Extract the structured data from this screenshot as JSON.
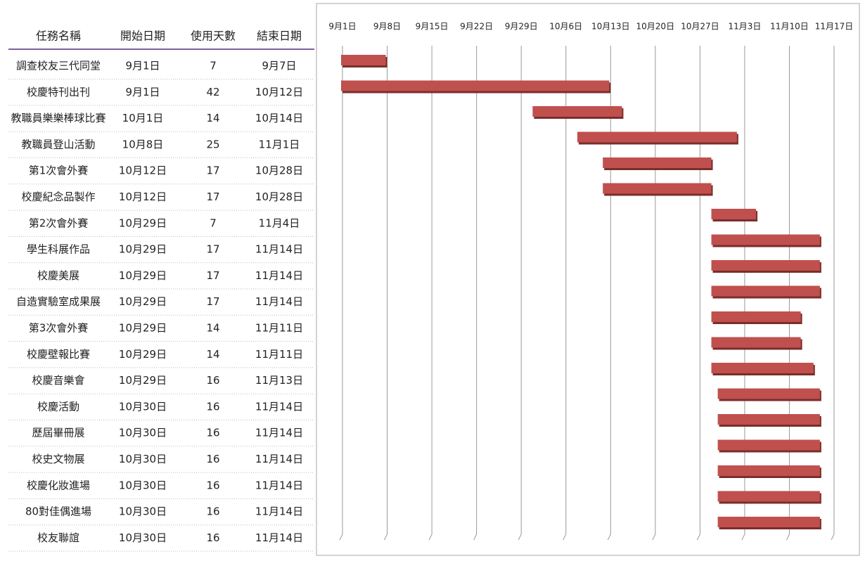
{
  "table": {
    "header": [
      "任務名稱",
      "開始日期",
      "使用天數",
      "結束日期"
    ],
    "rows": [
      [
        "調查校友三代同堂",
        "9月1日",
        7,
        "9月7日"
      ],
      [
        "校慶特刊出刊",
        "9月1日",
        42,
        "10月12日"
      ],
      [
        "教職員樂樂棒球比賽",
        "10月1日",
        14,
        "10月14日"
      ],
      [
        "教職員登山活動",
        "10月8日",
        25,
        "11月1日"
      ],
      [
        "第1次會外賽",
        "10月12日",
        17,
        "10月28日"
      ],
      [
        "校慶紀念品製作",
        "10月12日",
        17,
        "10月28日"
      ],
      [
        "第2次會外賽",
        "10月29日",
        7,
        "11月4日"
      ],
      [
        "學生科展作品",
        "10月29日",
        17,
        "11月14日"
      ],
      [
        "校慶美展",
        "10月29日",
        17,
        "11月14日"
      ],
      [
        "自造實驗室成果展",
        "10月29日",
        17,
        "11月14日"
      ],
      [
        "第3次會外賽",
        "10月29日",
        14,
        "11月11日"
      ],
      [
        "校慶壁報比賽",
        "10月29日",
        14,
        "11月11日"
      ],
      [
        "校慶音樂會",
        "10月29日",
        16,
        "11月13日"
      ],
      [
        "校慶活動",
        "10月30日",
        16,
        "11月14日"
      ],
      [
        "歷屆畢冊展",
        "10月30日",
        16,
        "11月14日"
      ],
      [
        "校史文物展",
        "10月30日",
        16,
        "11月14日"
      ],
      [
        "校慶化妝進場",
        "10月30日",
        16,
        "11月14日"
      ],
      [
        "80對佳偶進場",
        "10月30日",
        16,
        "11月14日"
      ],
      [
        "校友聯誼",
        "10月30日",
        16,
        "11月14日"
      ]
    ]
  },
  "chart_data": {
    "type": "gantt",
    "color": "#c0504d",
    "grid": true,
    "starts": [
      0,
      0,
      30,
      37,
      41,
      41,
      58,
      58,
      58,
      58,
      58,
      58,
      58,
      59,
      59,
      59,
      59,
      59,
      59
    ],
    "values": [
      7,
      42,
      14,
      25,
      17,
      17,
      7,
      17,
      17,
      17,
      14,
      14,
      16,
      16,
      16,
      16,
      16,
      16,
      16
    ],
    "xlim": [
      0,
      77
    ],
    "xticks": [
      {
        "value": 0,
        "label": "9月1日"
      },
      {
        "value": 7,
        "label": "9月8日"
      },
      {
        "value": 14,
        "label": "9月15日"
      },
      {
        "value": 21,
        "label": "9月22日"
      },
      {
        "value": 28,
        "label": "9月29日"
      },
      {
        "value": 35,
        "label": "10月6日"
      },
      {
        "value": 42,
        "label": "10月13日"
      },
      {
        "value": 49,
        "label": "10月20日"
      },
      {
        "value": 56,
        "label": "10月27日"
      },
      {
        "value": 63,
        "label": "11月3日"
      },
      {
        "value": 70,
        "label": "11月10日"
      },
      {
        "value": 77,
        "label": "11月17日"
      }
    ]
  }
}
